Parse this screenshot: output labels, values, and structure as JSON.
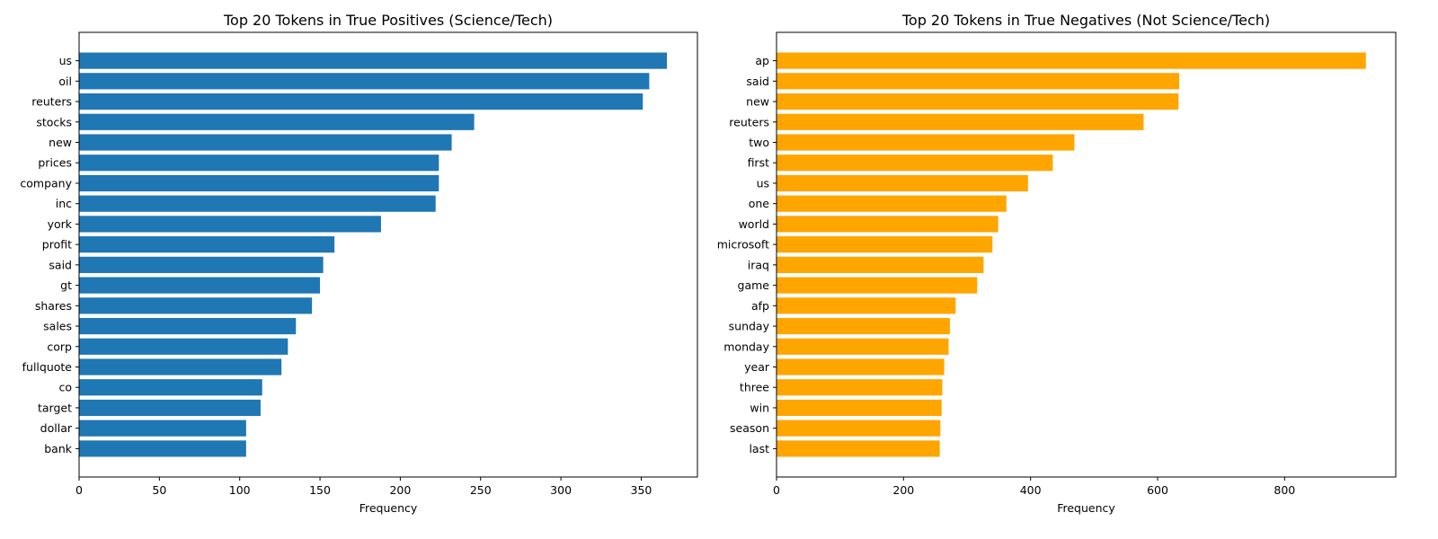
{
  "chart_data": [
    {
      "type": "bar",
      "orientation": "horizontal",
      "title": "Top 20 Tokens in True Positives (Science/Tech)",
      "xlabel": "Frequency",
      "ylabel": "",
      "color": "#1f77b4",
      "xlim": [
        0,
        385
      ],
      "xticks": [
        0,
        50,
        100,
        150,
        200,
        250,
        300,
        350
      ],
      "grid": false,
      "categories": [
        "us",
        "oil",
        "reuters",
        "stocks",
        "new",
        "prices",
        "company",
        "inc",
        "york",
        "profit",
        "said",
        "gt",
        "shares",
        "sales",
        "corp",
        "fullquote",
        "co",
        "target",
        "dollar",
        "bank"
      ],
      "values": [
        366,
        355,
        351,
        246,
        232,
        224,
        224,
        222,
        188,
        159,
        152,
        150,
        145,
        135,
        130,
        126,
        114,
        113,
        104,
        104
      ]
    },
    {
      "type": "bar",
      "orientation": "horizontal",
      "title": "Top 20 Tokens in True Negatives (Not Science/Tech)",
      "xlabel": "Frequency",
      "ylabel": "",
      "color": "#ffa500",
      "xlim": [
        0,
        975
      ],
      "xticks": [
        0,
        200,
        400,
        600,
        800
      ],
      "grid": false,
      "categories": [
        "ap",
        "said",
        "new",
        "reuters",
        "two",
        "first",
        "us",
        "one",
        "world",
        "microsoft",
        "iraq",
        "game",
        "afp",
        "sunday",
        "monday",
        "year",
        "three",
        "win",
        "season",
        "last"
      ],
      "values": [
        928,
        634,
        633,
        578,
        469,
        435,
        396,
        362,
        349,
        340,
        326,
        316,
        282,
        273,
        271,
        264,
        261,
        260,
        258,
        257
      ]
    }
  ]
}
